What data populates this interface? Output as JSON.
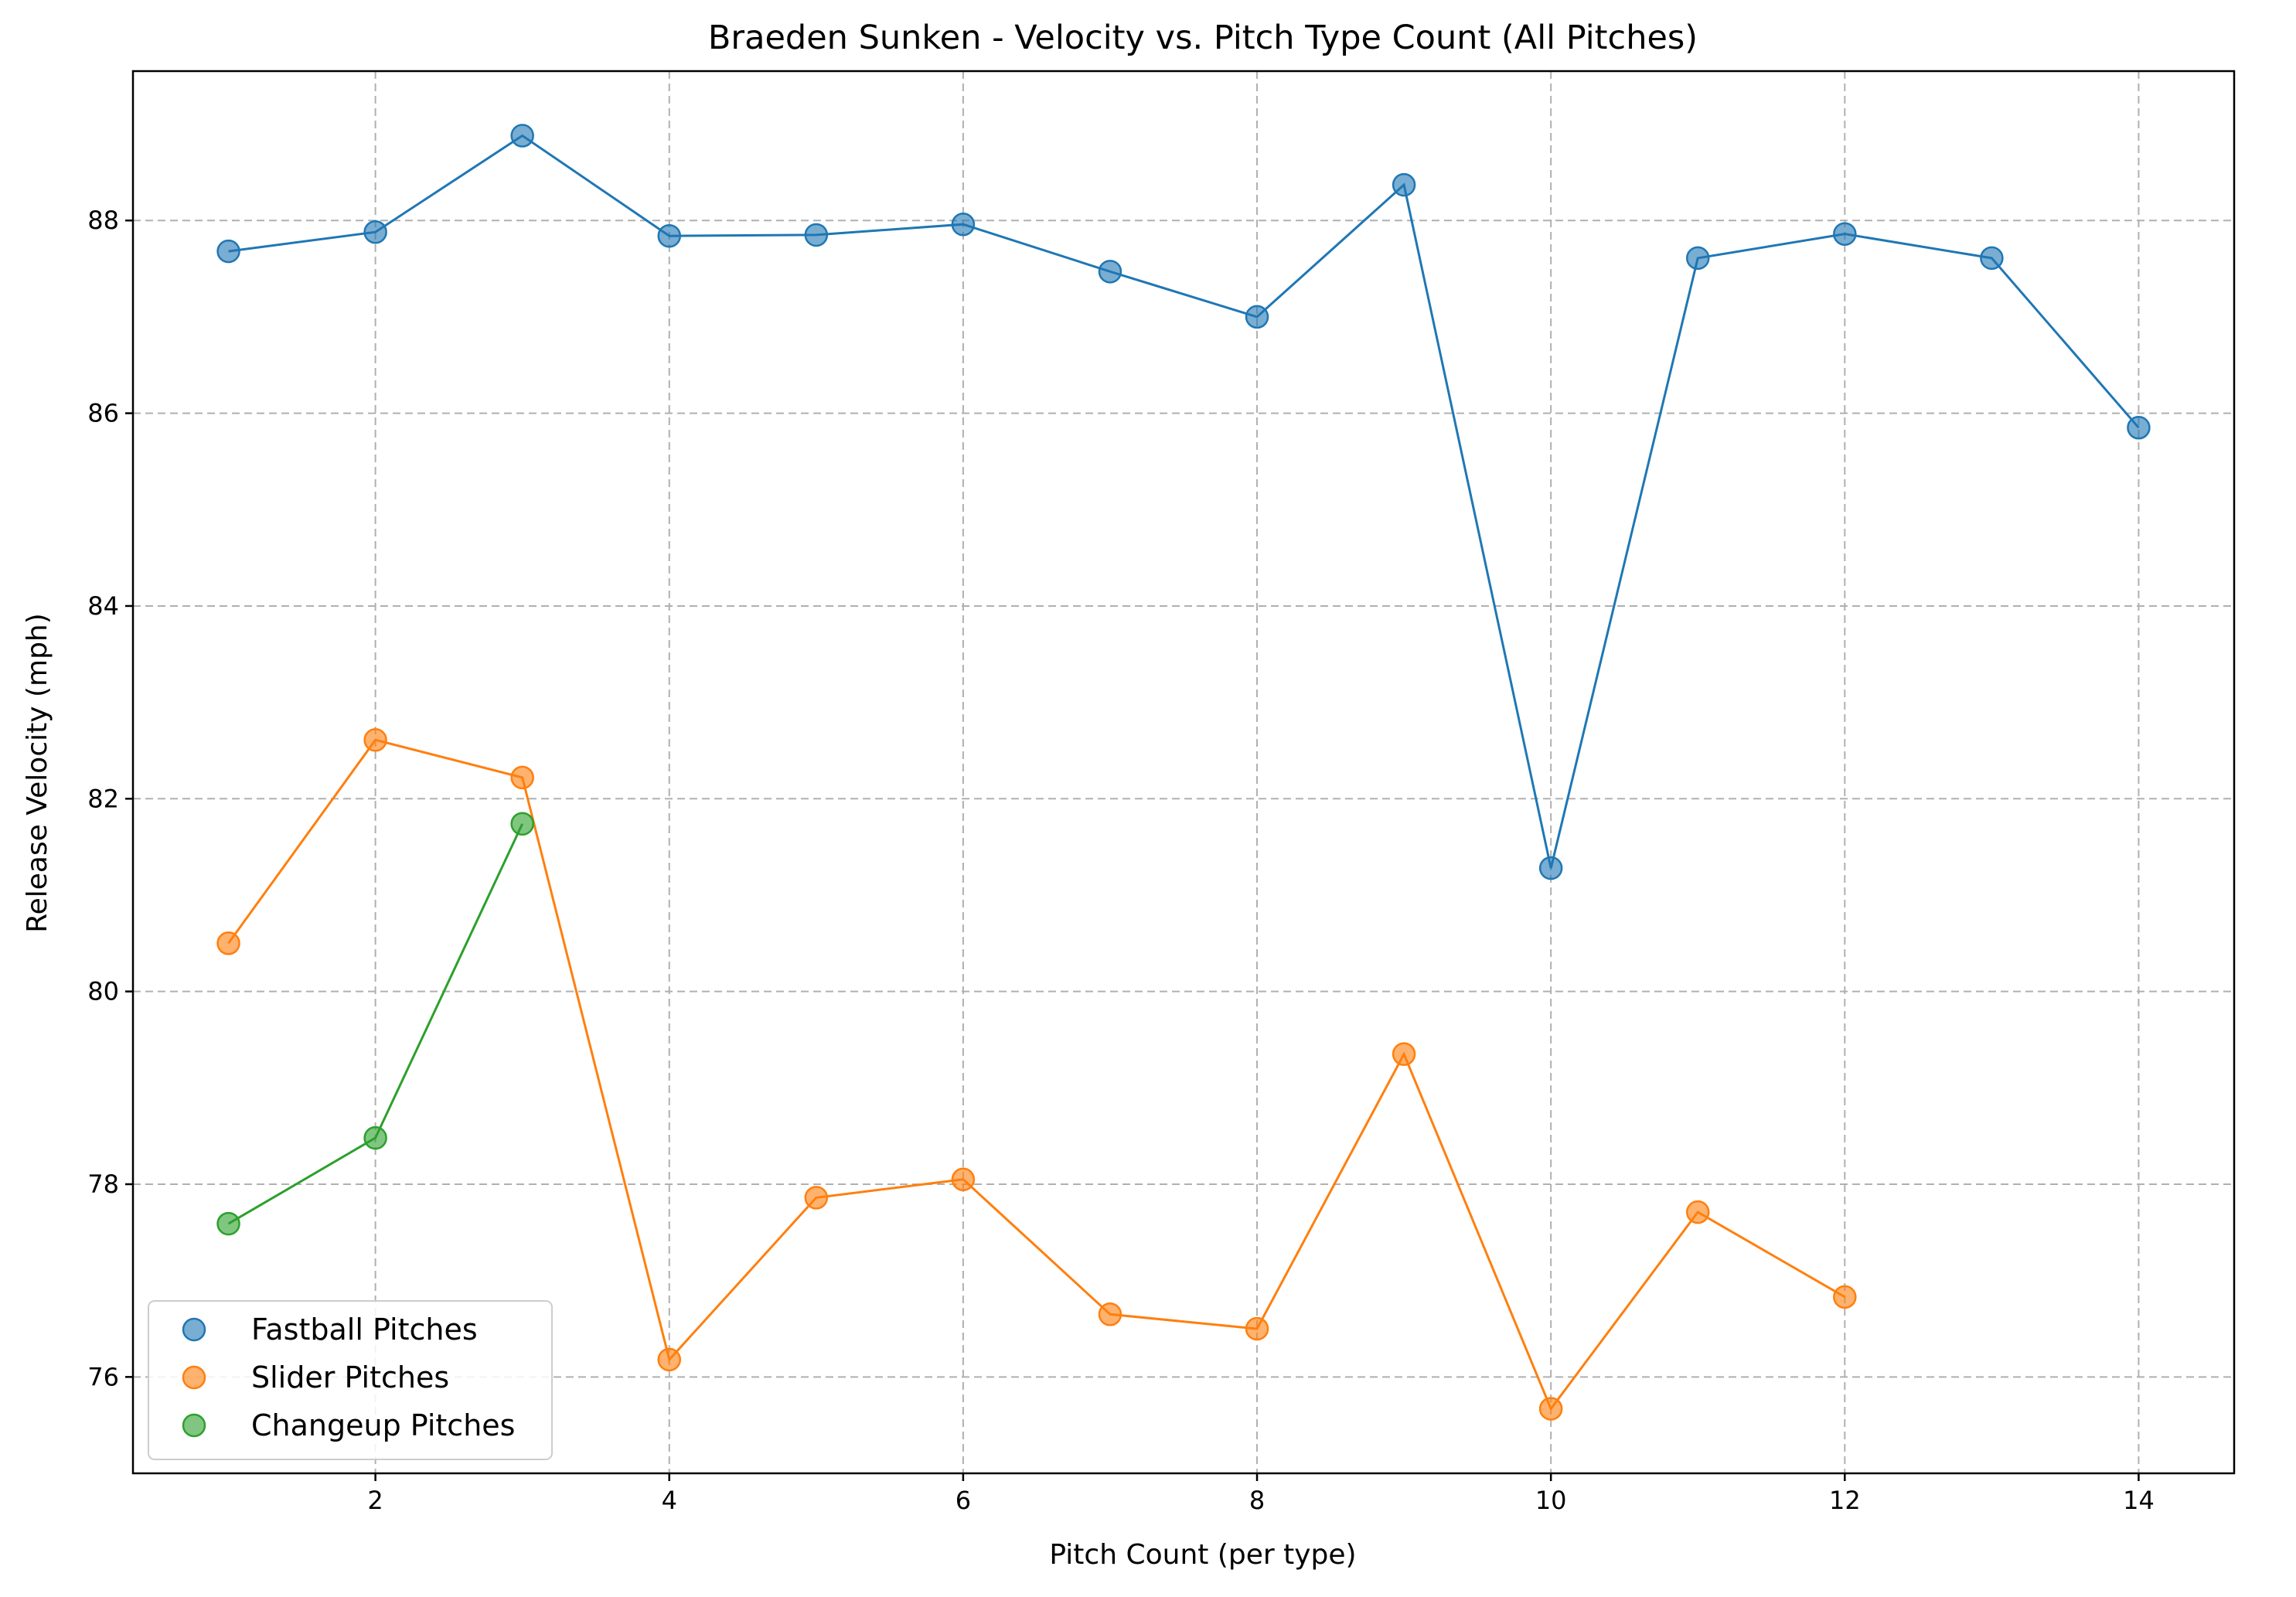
{
  "chart_data": {
    "type": "line",
    "title": "Braeden Sunken - Velocity vs. Pitch Type Count (All Pitches)",
    "xlabel": "Pitch Count (per type)",
    "ylabel": "Release Velocity (mph)",
    "xlim": [
      0.35,
      14.65
    ],
    "ylim": [
      75.0,
      89.55
    ],
    "xticks": [
      2,
      4,
      6,
      8,
      10,
      12,
      14
    ],
    "yticks": [
      76,
      78,
      80,
      82,
      84,
      86,
      88
    ],
    "grid": true,
    "legend_position": "lower-left",
    "series": [
      {
        "name": "Fastball Pitches",
        "color": "#1f77b4",
        "x": [
          1,
          2,
          3,
          4,
          5,
          6,
          7,
          8,
          9,
          10,
          11,
          12,
          13,
          14
        ],
        "y": [
          87.68,
          87.88,
          88.88,
          87.84,
          87.85,
          87.96,
          87.47,
          87.0,
          88.37,
          81.28,
          87.61,
          87.86,
          87.61,
          85.85
        ]
      },
      {
        "name": "Slider Pitches",
        "color": "#ff7f0e",
        "x": [
          1,
          2,
          3,
          4,
          5,
          6,
          7,
          8,
          9,
          10,
          11,
          12
        ],
        "y": [
          80.5,
          82.61,
          82.22,
          76.18,
          77.86,
          78.05,
          76.65,
          76.5,
          79.35,
          75.67,
          77.71,
          76.83
        ]
      },
      {
        "name": "Changeup Pitches",
        "color": "#2ca02c",
        "x": [
          1,
          2,
          3
        ],
        "y": [
          77.59,
          78.48,
          81.74
        ]
      }
    ]
  }
}
